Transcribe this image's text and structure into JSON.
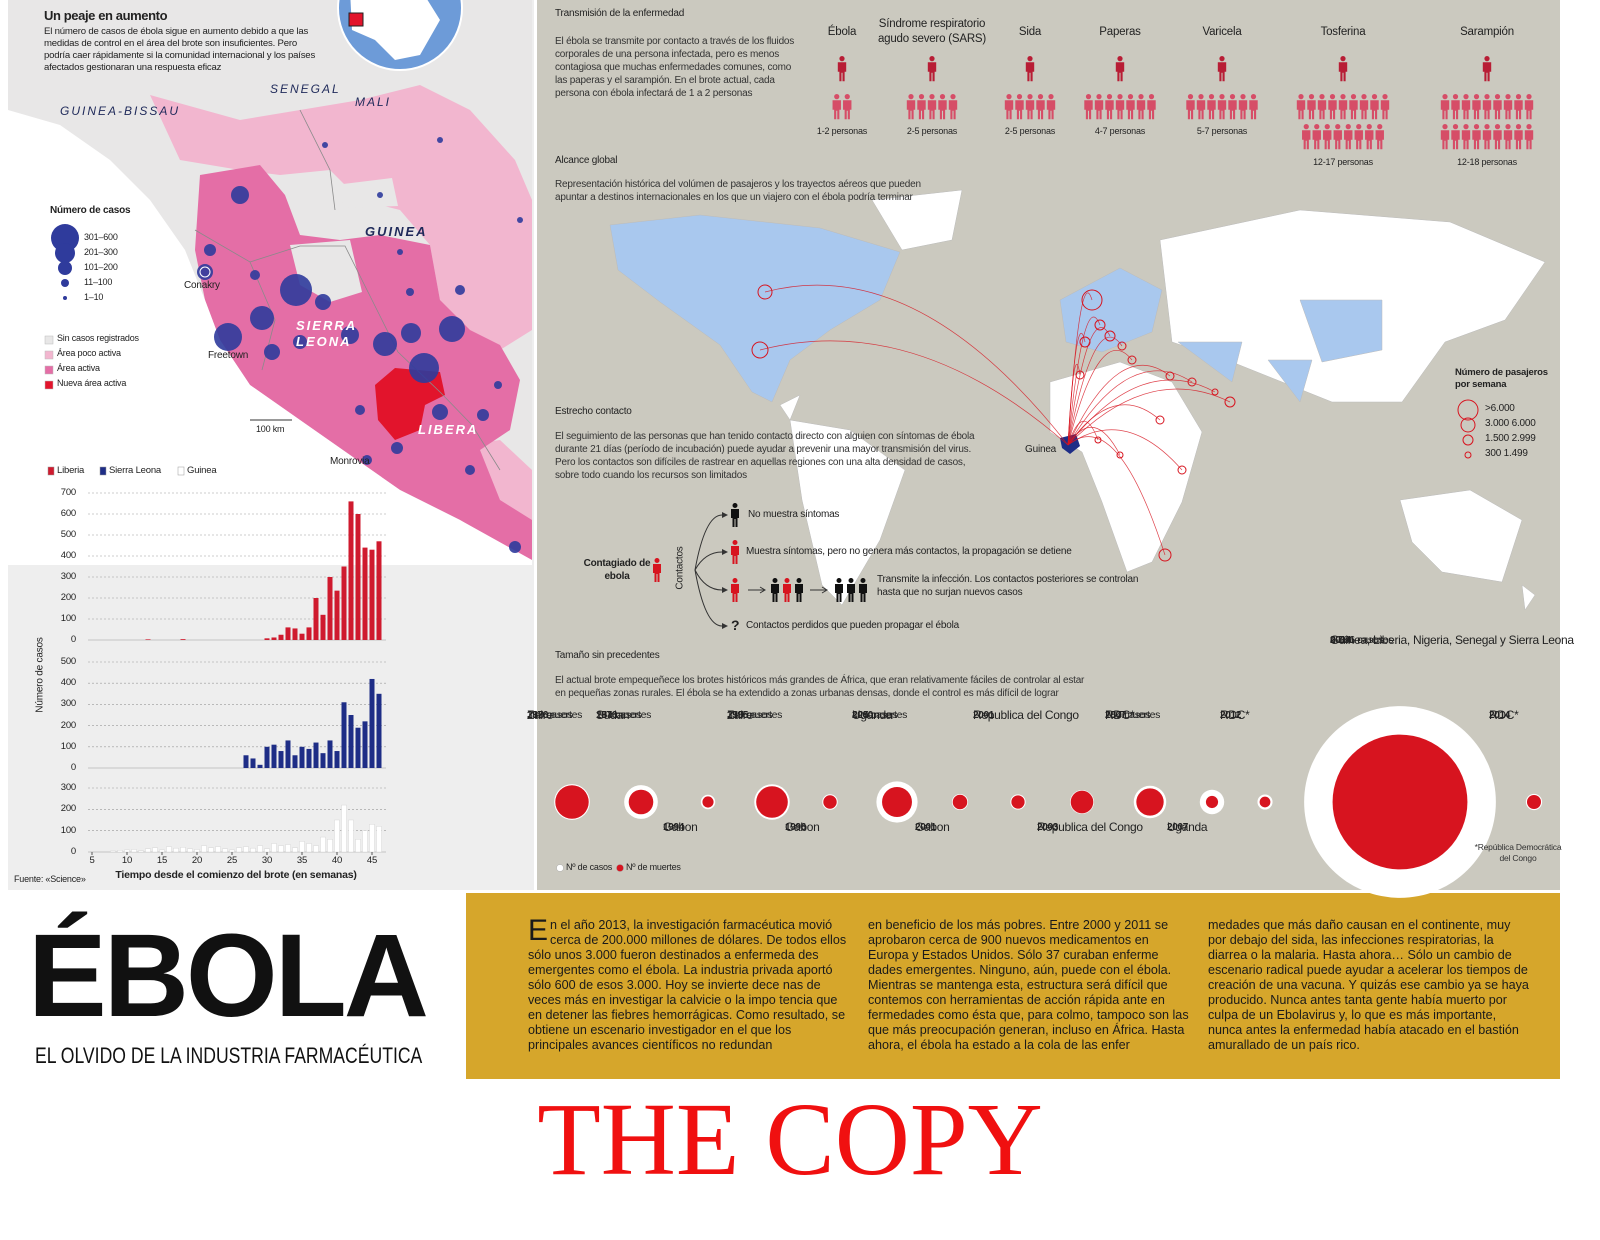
{
  "map": {
    "title": "Un peaje en aumento",
    "description": "El número de casos de ébola sigue en aumento debido a que las medidas de control en el área del brote son insuficientes. Pero podría caer rápidamente si la comunidad internacional y los países afectados gestionaran una respuesta eficaz",
    "countries": [
      "GUINEA-BISSAU",
      "SENEGAL",
      "MALI",
      "GUINEA",
      "SIERRA LEONA",
      "LIBERA"
    ],
    "cities": [
      "Conakry",
      "Freetown",
      "Monrovia"
    ],
    "scale": "100 km",
    "cases_legend": {
      "title": "Número de casos",
      "items": [
        "301–600",
        "201–300",
        "101–200",
        "11–100",
        "1–10"
      ]
    },
    "area_legend": {
      "items": [
        {
          "label": "Sin casos registrados",
          "color": "#e8e7e7"
        },
        {
          "label": "Área poco activa",
          "color": "#f2b6cf"
        },
        {
          "label": "Área activa",
          "color": "#e46ea6"
        },
        {
          "label": "Nueva área activa",
          "color": "#e2142c"
        }
      ]
    }
  },
  "chart_data": {
    "type": "bar",
    "y_label": "Número de casos",
    "x_label": "Tiempo desde el comienzo del brote (en semanas)",
    "source": "Fuente: «Science»",
    "x": [
      5,
      6,
      7,
      8,
      9,
      10,
      11,
      12,
      13,
      14,
      15,
      16,
      17,
      18,
      19,
      20,
      21,
      22,
      23,
      24,
      25,
      26,
      27,
      28,
      29,
      30,
      31,
      32,
      33,
      34,
      35,
      36,
      37,
      38,
      39,
      40,
      41,
      42,
      43,
      44,
      45,
      46
    ],
    "xlim": [
      4,
      47
    ],
    "xticks": [
      5,
      10,
      15,
      20,
      25,
      30,
      35,
      40,
      45
    ],
    "grid": true,
    "series": [
      {
        "name": "Liberia",
        "color": "#cf1a2e",
        "ylim": [
          0,
          700
        ],
        "yticks": [
          0,
          100,
          200,
          300,
          400,
          500,
          600,
          700
        ],
        "values": [
          0,
          0,
          0,
          0,
          0,
          0,
          0,
          0,
          3,
          0,
          0,
          0,
          0,
          4,
          0,
          0,
          0,
          0,
          0,
          0,
          0,
          0,
          0,
          0,
          0,
          8,
          12,
          25,
          60,
          55,
          30,
          60,
          200,
          120,
          300,
          235,
          350,
          660,
          600,
          440,
          430,
          470
        ]
      },
      {
        "name": "Sierra Leona",
        "color": "#1e2d86",
        "ylim": [
          0,
          500
        ],
        "yticks": [
          0,
          100,
          200,
          300,
          400,
          500
        ],
        "values": [
          0,
          0,
          0,
          0,
          0,
          0,
          0,
          0,
          0,
          0,
          0,
          0,
          0,
          0,
          0,
          0,
          0,
          0,
          0,
          0,
          0,
          0,
          60,
          45,
          15,
          100,
          110,
          80,
          130,
          60,
          100,
          90,
          120,
          70,
          130,
          80,
          310,
          250,
          190,
          220,
          420,
          350
        ]
      },
      {
        "name": "Guinea",
        "color": "#ffffff",
        "ylim": [
          0,
          300
        ],
        "yticks": [
          0,
          100,
          200,
          300
        ],
        "values": [
          0,
          0,
          0,
          5,
          8,
          10,
          12,
          6,
          15,
          20,
          10,
          25,
          18,
          22,
          15,
          12,
          30,
          20,
          25,
          15,
          10,
          20,
          25,
          18,
          30,
          15,
          40,
          30,
          35,
          20,
          50,
          40,
          30,
          70,
          60,
          150,
          220,
          150,
          60,
          100,
          130,
          120
        ]
      }
    ]
  },
  "transmission": {
    "title": "Transmisión de la enfermedad",
    "description": "El ébola se transmite por contacto a través de los fluidos corporales de una persona infectada, pero es menos contagiosa que muchas enfermedades comunes, como las paperas y el sarampión. En el brote actual, cada persona con ébola infectará de 1 a 2 personas",
    "diseases": [
      {
        "name": "Ébola",
        "range": "1-2 personas",
        "contacts": 2
      },
      {
        "name": "Síndrome respiratorio agudo severo (SARS)",
        "range": "2-5 personas",
        "contacts": 5
      },
      {
        "name": "Sida",
        "range": "2-5 personas",
        "contacts": 5
      },
      {
        "name": "Paperas",
        "range": "4-7 personas",
        "contacts": 7
      },
      {
        "name": "Varicela",
        "range": "5-7 personas",
        "contacts": 7
      },
      {
        "name": "Tosferina",
        "range": "12-17 personas",
        "contacts": 17
      },
      {
        "name": "Sarampión",
        "range": "12-18 personas",
        "contacts": 18
      }
    ]
  },
  "global_reach": {
    "title": "Alcance global",
    "description": "Representación histórica del volúmen de pasajeros y los trayectos aéreos que pueden apuntar a destinos internacionales en los que un viajero con el ébola podría terminar",
    "origin": "Guinea",
    "legend": {
      "title": "Número de pasajeros por semana",
      "items": [
        ">6.000",
        "3.000 6.000",
        "1.500 2.999",
        "300 1.499"
      ]
    }
  },
  "close_contact": {
    "title": "Estrecho contacto",
    "description": "El seguimiento de las personas que han tenido contacto directo con alguien con síntomas de ébola durante 21 días (período de incubación) puede ayudar a prevenir una mayor transmisión del virus. Pero los contactos son difíciles de rastrear en aquellas regiones con una alta densidad de casos, sobre todo cuando los recursos son limitados",
    "patient": "Contagiado de ebola",
    "contacts_label": "Contactos",
    "outcomes": [
      "No muestra síntomas",
      "Muestra síntomas, pero no genera más contactos, la propagación se detiene",
      "Transmite la infección. Los contactos posteriores se controlan hasta que no surjan nuevos casos",
      "Contactos perdidos que pueden propagar el ébola"
    ],
    "unknown": "?"
  },
  "outbreaks": {
    "title": "Tamaño sin precedentes",
    "description": "El actual brote empequeñece los brotes históricos más grandes de África, que eran relativamente fáciles de controlar al estar en pequeñas zonas rurales. El ébola se ha extendido a zonas urbanas densas, donde el control es más difícil de lograr",
    "years": [
      "1976",
      "1976",
      "1994",
      "1995",
      "1996",
      "2000",
      "2001",
      "2001",
      "2003",
      "2007",
      "2007",
      "2012",
      "2014",
      "2014"
    ],
    "places": [
      "Zaire",
      "Sudan",
      "Gabon",
      "Zaire",
      "Gabon",
      "Uganda",
      "Gabon",
      "Republica del Congo",
      "Republica del Congo",
      "RDC*",
      "Uganda",
      "RDC*",
      "Guinea, Liberia, Nigeria, Senegal y Sierra Leona",
      "RDC*"
    ],
    "series": [
      {
        "name": "Nº de casos",
        "color": "#ffffff",
        "values": [
          318,
          284,
          52,
          315,
          60,
          425,
          65,
          59,
          143,
          264,
          149,
          57,
          9191,
          66
        ],
        "value_labels": [
          "318 casos",
          "284 casos",
          null,
          "315 casos",
          null,
          "425 casos",
          null,
          null,
          null,
          "264 casos",
          null,
          null,
          "9.191 casos",
          null
        ]
      },
      {
        "name": "Nº de muertes",
        "color": "#d7141f",
        "values": [
          280,
          151,
          31,
          250,
          45,
          224,
          53,
          44,
          128,
          187,
          37,
          29,
          4546,
          49
        ],
        "value_labels": [
          "280 muertes",
          "151 muertes",
          null,
          "250 muertes",
          null,
          "224 muertes",
          null,
          null,
          null,
          "187 muertes",
          null,
          null,
          "4.546 muertes",
          null
        ]
      }
    ],
    "footnote": "*República Democrática del Congo"
  },
  "header": {
    "title": "ÉBOLA",
    "subtitle": "EL OLVIDO DE LA INDUSTRIA FARMACÉUTICA"
  },
  "article": {
    "columns": [
      "En el año 2013, la investigación farmacéutica movió cerca de 200.000 millones de dólares. De todos ellos sólo unos 3.000 fueron destinados a enfermeda des emergentes como el ébola. La industria privada aportó sólo 600 de esos 3.000. Hoy se invierte dece nas de veces más en investigar la calvicie o la impo tencia que en detener las fiebres hemorrágicas. Como resultado, se obtiene un escenario investigador en el que los principales avances científicos no redundan",
      "en beneficio de los más pobres. Entre 2000 y 2011 se aprobaron cerca de 900 nuevos medicamentos en Europa y Estados Unidos. Sólo 37 curaban enferme dades emergentes. Ninguno, aún, puede con el ébola. Mientras se mantenga esta, estructura será difícil que contemos con herramientas de acción rápida ante en fermedades como ésta que, para colmo, tampoco son las que más preocupación generan, incluso en África. Hasta ahora, el ébola ha estado a la cola de las enfer",
      "medades que más daño causan en el continente, muy por debajo del sida, las infecciones respiratorias, la diarrea o la malaria. Hasta ahora… Sólo un cambio de escenario radical puede ayudar a acelerar los tiempos de creación de una vacuna. Y quizás ese cambio ya se haya producido. Nunca antes tanta gente había muerto por culpa de un Ebolavirus y, lo que es más importante, nunca antes la enfermedad había atacado en el bastión amurallado de un país rico."
    ]
  },
  "watermark": "THE COPY"
}
